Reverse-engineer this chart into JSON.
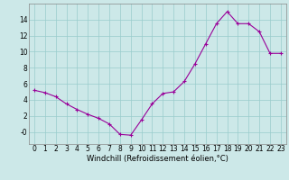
{
  "hours": [
    0,
    1,
    2,
    3,
    4,
    5,
    6,
    7,
    8,
    9,
    10,
    11,
    12,
    13,
    14,
    15,
    16,
    17,
    18,
    19,
    20,
    21,
    22,
    23
  ],
  "values": [
    5.2,
    4.9,
    4.4,
    3.5,
    2.8,
    2.2,
    1.7,
    1.0,
    -0.3,
    -0.4,
    1.5,
    3.5,
    4.8,
    5.0,
    6.3,
    8.5,
    11.0,
    13.5,
    15.0,
    13.5,
    13.5,
    12.5,
    9.8,
    9.8
  ],
  "xlabel": "Windchill (Refroidissement éolien,°C)",
  "xlim": [
    -0.5,
    23.5
  ],
  "ylim": [
    -1.5,
    16
  ],
  "yticks": [
    0,
    2,
    4,
    6,
    8,
    10,
    12,
    14
  ],
  "ytick_labels": [
    "-0",
    "2",
    "4",
    "6",
    "8",
    "10",
    "12",
    "14"
  ],
  "xticks": [
    0,
    1,
    2,
    3,
    4,
    5,
    6,
    7,
    8,
    9,
    10,
    11,
    12,
    13,
    14,
    15,
    16,
    17,
    18,
    19,
    20,
    21,
    22,
    23
  ],
  "line_color": "#990099",
  "marker": "+",
  "bg_color": "#cce8e8",
  "grid_color": "#99cccc",
  "tick_fontsize": 5.5,
  "xlabel_fontsize": 6.0
}
